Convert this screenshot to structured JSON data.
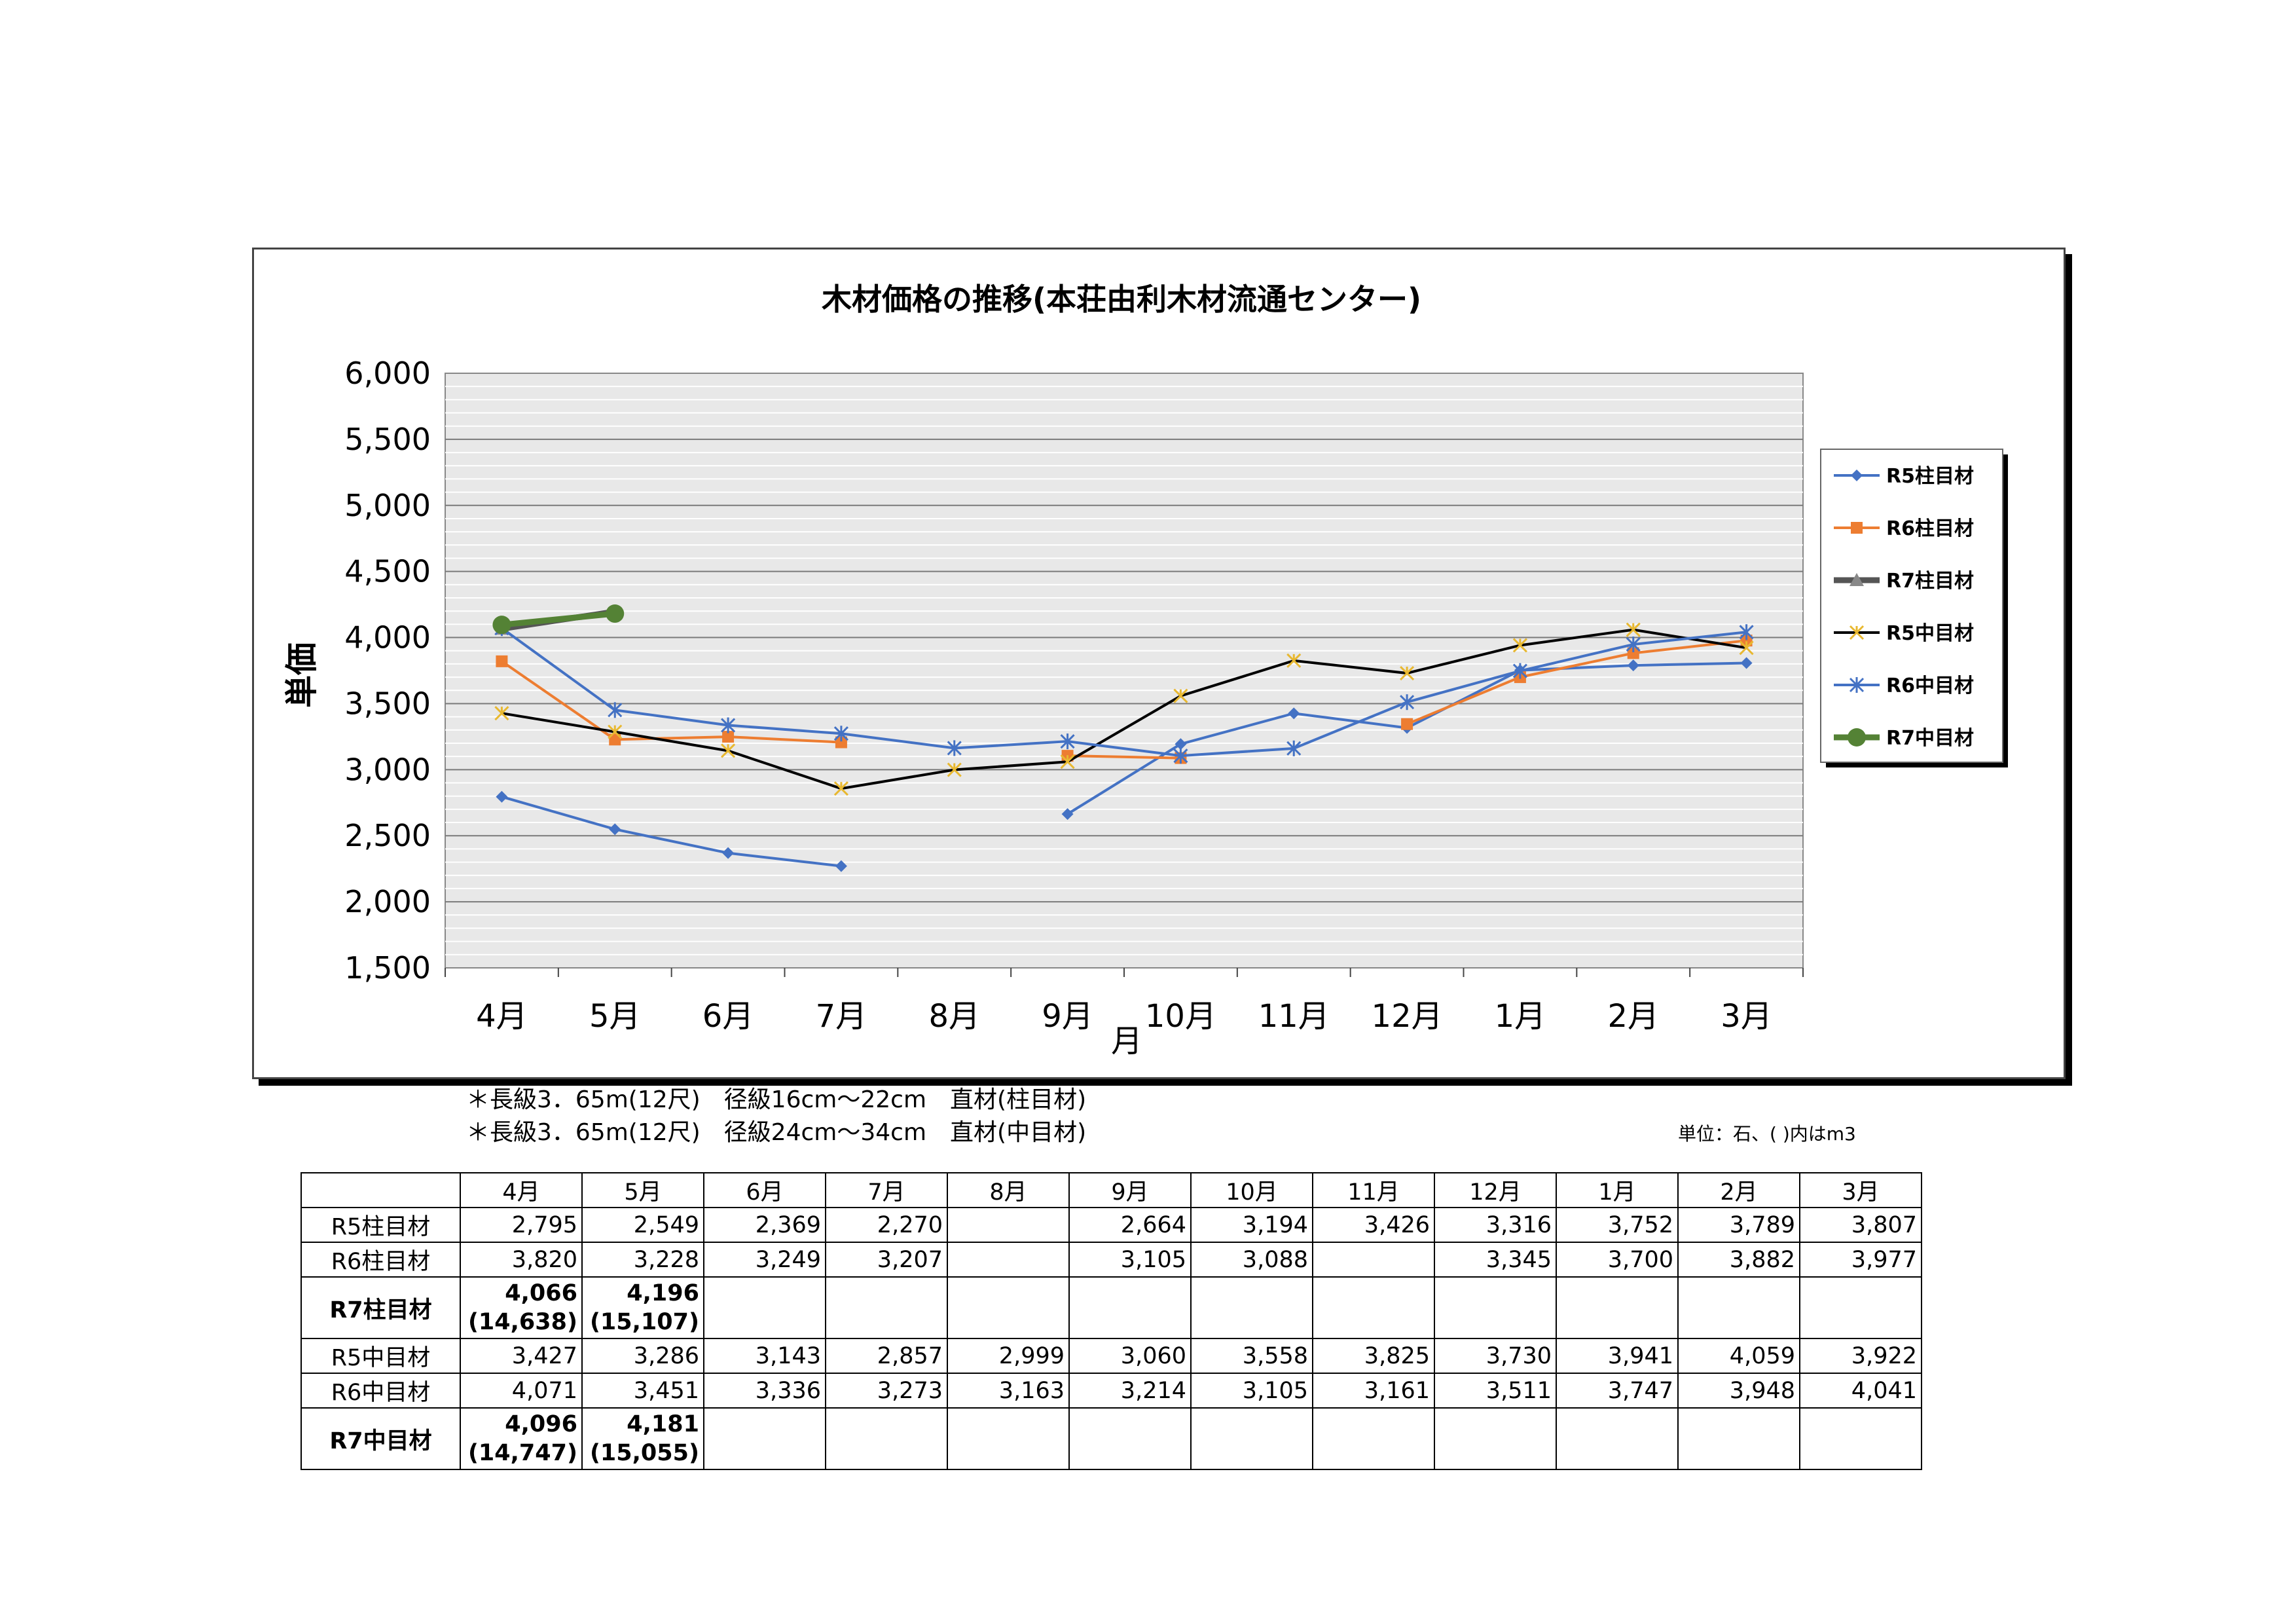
{
  "chart_data": {
    "type": "line",
    "title": "木材価格の推移(本荘由利木材流通センター)",
    "xlabel": "月",
    "ylabel": "単価",
    "categories": [
      "4月",
      "5月",
      "6月",
      "7月",
      "8月",
      "9月",
      "10月",
      "11月",
      "12月",
      "1月",
      "2月",
      "3月"
    ],
    "ylim": [
      1500,
      6000
    ],
    "yticks": [
      "6,000",
      "5,500",
      "5,000",
      "4,500",
      "4,000",
      "3,500",
      "3,000",
      "2,500",
      "2,000",
      "1,500"
    ],
    "ytick_values": [
      6000,
      5500,
      5000,
      4500,
      4000,
      3500,
      3000,
      2500,
      2000,
      1500
    ],
    "grid": true,
    "legend_position": "right",
    "series": [
      {
        "name": "R5柱目材",
        "color": "#4472C4",
        "marker": "diamond",
        "values": [
          2795,
          2549,
          2369,
          2270,
          null,
          2664,
          3194,
          3426,
          3316,
          3752,
          3789,
          3807
        ]
      },
      {
        "name": "R6柱目材",
        "color": "#ED7D31",
        "marker": "square",
        "values": [
          3820,
          3228,
          3249,
          3207,
          null,
          3105,
          3088,
          null,
          3345,
          3700,
          3882,
          3977
        ]
      },
      {
        "name": "R7柱目材",
        "color": "#555555",
        "marker": "triangle",
        "values": [
          4066,
          4196,
          null,
          null,
          null,
          null,
          null,
          null,
          null,
          null,
          null,
          null
        ]
      },
      {
        "name": "R5中目材",
        "color": "#000000",
        "marker": "star",
        "values": [
          3427,
          3286,
          3143,
          2857,
          2999,
          3060,
          3558,
          3825,
          3730,
          3941,
          4059,
          3922
        ]
      },
      {
        "name": "R6中目材",
        "color": "#4472C4",
        "marker": "asterisk",
        "values": [
          4071,
          3451,
          3336,
          3273,
          3163,
          3214,
          3105,
          3161,
          3511,
          3747,
          3948,
          4041
        ]
      },
      {
        "name": "R7中目材",
        "color": "#548235",
        "marker": "circle",
        "values": [
          4096,
          4181,
          null,
          null,
          null,
          null,
          null,
          null,
          null,
          null,
          null,
          null
        ]
      }
    ]
  },
  "notes": {
    "line1": "＊長級3．65m(12尺)　径級16cm〜22cm　直材(柱目材)",
    "line2": "＊長級3．65m(12尺)　径級24cm〜34cm　直材(中目材)",
    "unit": "単位：石、( )内はm3"
  },
  "table": {
    "headers": [
      "4月",
      "5月",
      "6月",
      "7月",
      "8月",
      "9月",
      "10月",
      "11月",
      "12月",
      "1月",
      "2月",
      "3月"
    ],
    "rows": [
      {
        "label": "R5柱目材",
        "cells": [
          "2,795",
          "2,549",
          "2,369",
          "2,270",
          "",
          "2,664",
          "3,194",
          "3,426",
          "3,316",
          "3,752",
          "3,789",
          "3,807"
        ]
      },
      {
        "label": "R6柱目材",
        "cells": [
          "3,820",
          "3,228",
          "3,249",
          "3,207",
          "",
          "3,105",
          "3,088",
          "",
          "3,345",
          "3,700",
          "3,882",
          "3,977"
        ]
      },
      {
        "label": "R7柱目材",
        "cells": [
          "4,066",
          "4,196",
          "",
          "",
          "",
          "",
          "",
          "",
          "",
          "",
          "",
          ""
        ],
        "subcells": [
          "(14,638)",
          "(15,107)",
          "",
          "",
          "",
          "",
          "",
          "",
          "",
          "",
          "",
          ""
        ]
      },
      {
        "label": "R5中目材",
        "cells": [
          "3,427",
          "3,286",
          "3,143",
          "2,857",
          "2,999",
          "3,060",
          "3,558",
          "3,825",
          "3,730",
          "3,941",
          "4,059",
          "3,922"
        ]
      },
      {
        "label": "R6中目材",
        "cells": [
          "4,071",
          "3,451",
          "3,336",
          "3,273",
          "3,163",
          "3,214",
          "3,105",
          "3,161",
          "3,511",
          "3,747",
          "3,948",
          "4,041"
        ]
      },
      {
        "label": "R7中目材",
        "cells": [
          "4,096",
          "4,181",
          "",
          "",
          "",
          "",
          "",
          "",
          "",
          "",
          "",
          ""
        ],
        "subcells": [
          "(14,747)",
          "(15,055)",
          "",
          "",
          "",
          "",
          "",
          "",
          "",
          "",
          "",
          ""
        ]
      }
    ]
  }
}
